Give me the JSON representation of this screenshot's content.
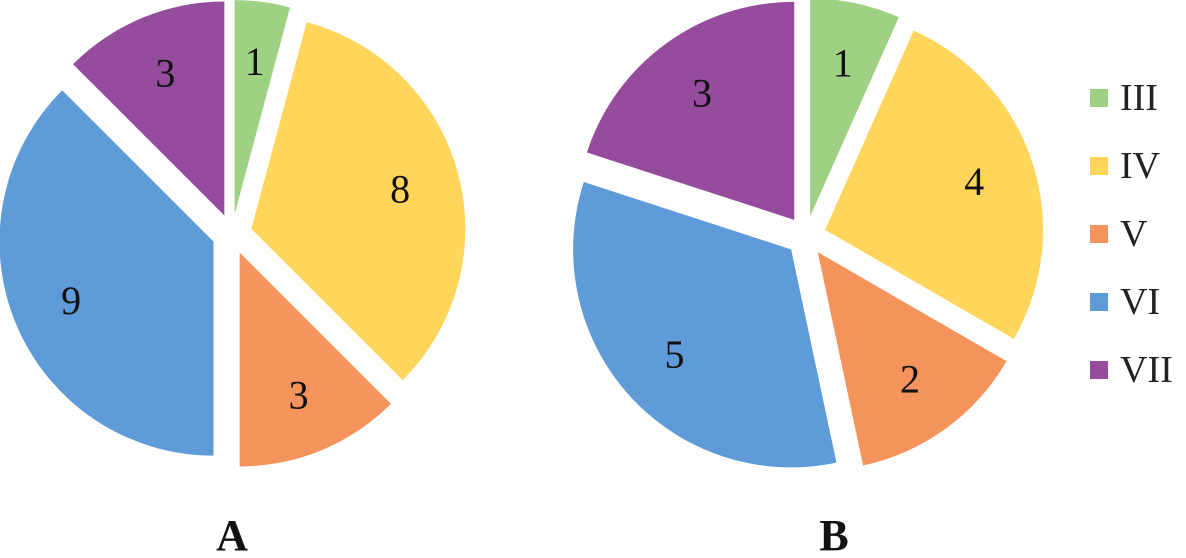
{
  "colors": {
    "III": "#9fd184",
    "IV": "#ffd55b",
    "V": "#f4935b",
    "VI": "#5e9bd8",
    "VII": "#964c9c"
  },
  "legend": {
    "items": [
      "III",
      "IV",
      "V",
      "VI",
      "VII"
    ]
  },
  "chart_data": [
    {
      "type": "pie",
      "title": "A",
      "categories": [
        "III",
        "IV",
        "V",
        "VI",
        "VII"
      ],
      "values": [
        1,
        8,
        3,
        9,
        3
      ],
      "slice_order": "clockwise from top",
      "exploded": true,
      "legend": "right"
    },
    {
      "type": "pie",
      "title": "B",
      "categories": [
        "III",
        "IV",
        "V",
        "VI",
        "VII"
      ],
      "values": [
        1,
        4,
        2,
        5,
        3
      ],
      "slice_order": "clockwise from top",
      "exploded": true,
      "legend": "right"
    }
  ]
}
